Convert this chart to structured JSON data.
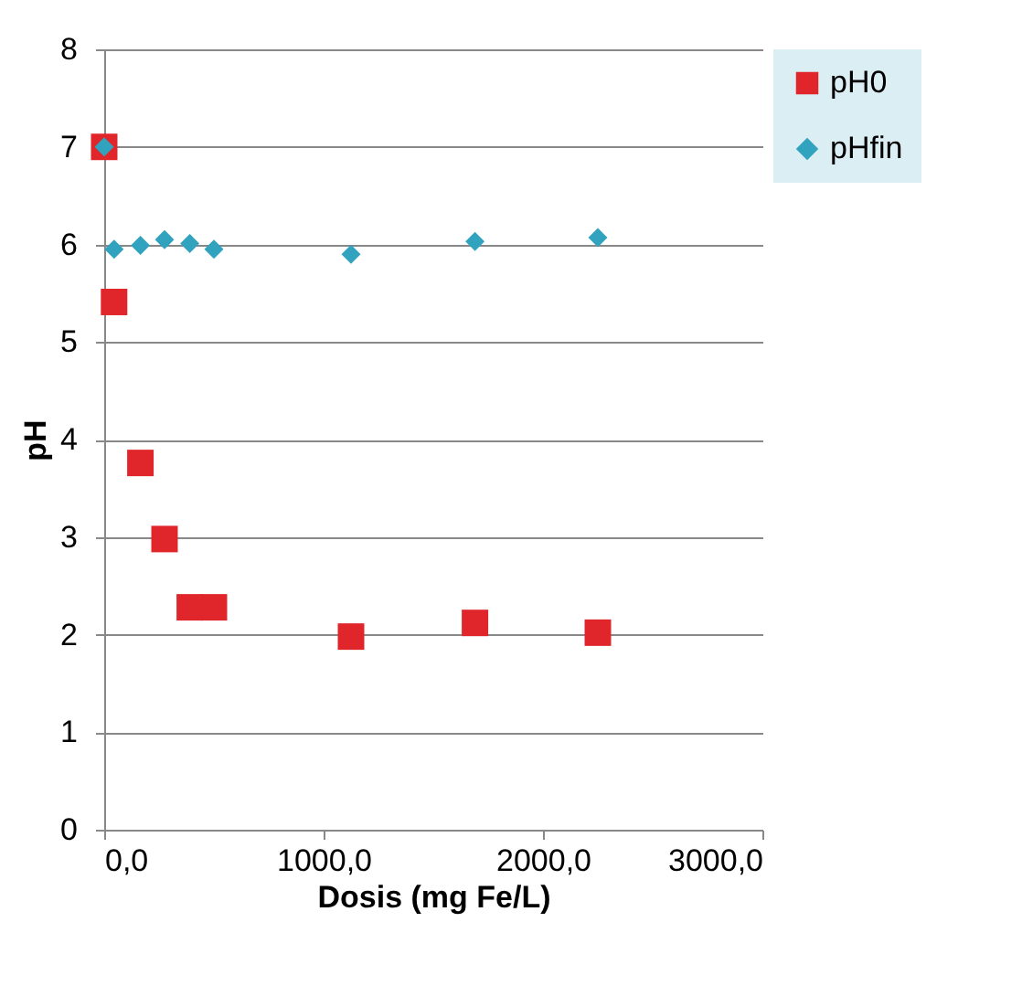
{
  "chart_data": {
    "type": "scatter",
    "xlabel": "Dosis (mg  Fe/L)",
    "ylabel": "pH",
    "x": [
      0,
      45,
      165,
      275,
      390,
      500,
      1125,
      1690,
      2250
    ],
    "series": [
      {
        "name": "pH0",
        "color": "#e0262b",
        "marker": "square",
        "values": [
          7.0,
          5.41,
          3.76,
          2.98,
          2.28,
          2.28,
          1.98,
          2.12,
          2.02
        ]
      },
      {
        "name": "pHfin",
        "color": "#31a3bf",
        "marker": "diamond",
        "values": [
          7.0,
          5.95,
          5.99,
          6.05,
          6.01,
          5.95,
          5.9,
          6.03,
          6.07
        ]
      }
    ],
    "xlim": [
      0,
      3000
    ],
    "xticks": [
      {
        "value": 0,
        "label": "0,0"
      },
      {
        "value": 1000,
        "label": "1000,0"
      },
      {
        "value": 2000,
        "label": "2000,0"
      },
      {
        "value": 3000,
        "label": "3000,0"
      }
    ],
    "ylim": [
      0,
      8
    ],
    "yticks": [
      0,
      1,
      2,
      3,
      4,
      5,
      6,
      7,
      8
    ],
    "grid": "y",
    "legend": "right"
  }
}
